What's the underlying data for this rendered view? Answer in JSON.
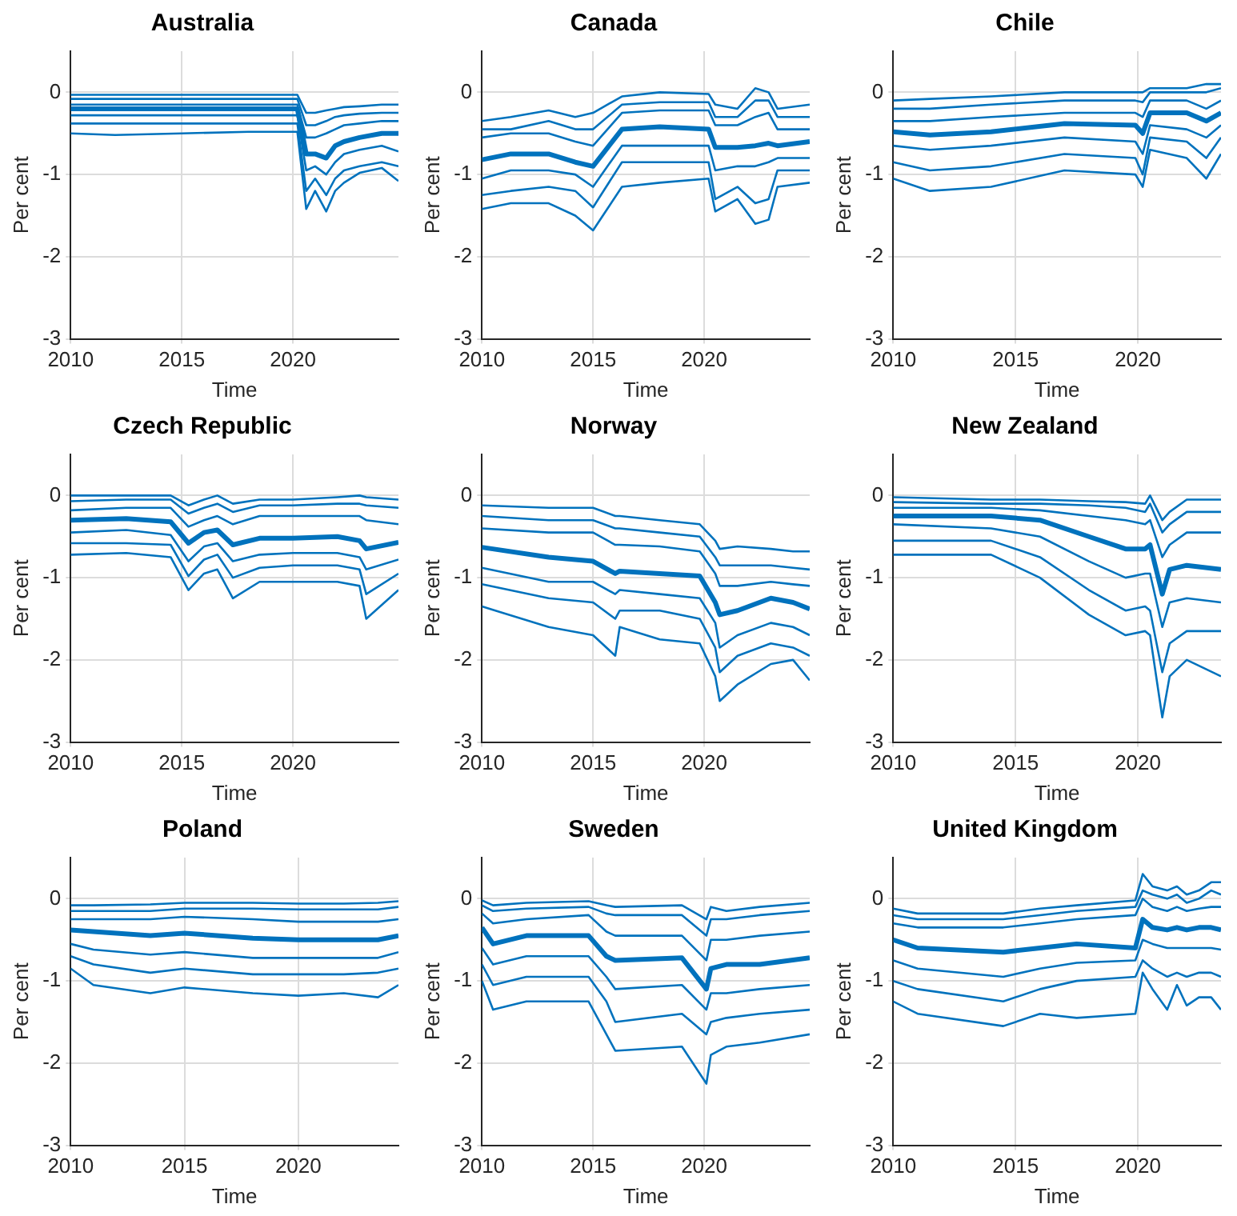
{
  "chart_data": [
    {
      "type": "line",
      "title": "Australia",
      "xlabel": "Time",
      "ylabel": "Per cent",
      "xlim": [
        2010,
        2024.75
      ],
      "xticks": [
        2010,
        2015,
        2020
      ],
      "ylim": [
        -3,
        0.5
      ],
      "yticks": [
        -3,
        -2,
        -1,
        0
      ],
      "grid": true,
      "legend": false,
      "x": [
        2010,
        2012,
        2015,
        2018,
        2020.2,
        2020.6,
        2021.0,
        2021.5,
        2021.9,
        2022.3,
        2023,
        2024,
        2024.75
      ],
      "series": [
        {
          "color": "#0072bd",
          "values": [
            -0.03,
            -0.03,
            -0.03,
            -0.03,
            -0.03,
            -0.25,
            -0.25,
            -0.22,
            -0.2,
            -0.18,
            -0.17,
            -0.15,
            -0.15
          ]
        },
        {
          "color": "#0072bd",
          "values": [
            -0.08,
            -0.08,
            -0.08,
            -0.08,
            -0.08,
            -0.4,
            -0.4,
            -0.35,
            -0.3,
            -0.28,
            -0.26,
            -0.25,
            -0.25
          ]
        },
        {
          "color": "#0072bd",
          "values": [
            -0.15,
            -0.15,
            -0.15,
            -0.15,
            -0.15,
            -0.55,
            -0.55,
            -0.5,
            -0.45,
            -0.4,
            -0.38,
            -0.35,
            -0.35
          ]
        },
        {
          "color": "#0072bd",
          "values": [
            -0.2,
            -0.2,
            -0.2,
            -0.2,
            -0.2,
            -0.75,
            -0.75,
            -0.8,
            -0.65,
            -0.6,
            -0.55,
            -0.5,
            -0.5
          ]
        },
        {
          "color": "#0072bd",
          "values": [
            -0.28,
            -0.28,
            -0.28,
            -0.28,
            -0.28,
            -0.95,
            -0.9,
            -1.0,
            -0.85,
            -0.75,
            -0.7,
            -0.65,
            -0.72
          ]
        },
        {
          "color": "#0072bd",
          "values": [
            -0.38,
            -0.38,
            -0.38,
            -0.38,
            -0.38,
            -1.2,
            -1.05,
            -1.25,
            -1.05,
            -0.95,
            -0.9,
            -0.85,
            -0.9
          ]
        },
        {
          "color": "#0072bd",
          "values": [
            -0.5,
            -0.52,
            -0.5,
            -0.48,
            -0.48,
            -1.42,
            -1.2,
            -1.45,
            -1.2,
            -1.1,
            -0.98,
            -0.92,
            -1.08
          ]
        }
      ]
    },
    {
      "type": "line",
      "title": "Canada",
      "xlabel": "Time",
      "ylabel": "Per cent",
      "xlim": [
        2010,
        2024.75
      ],
      "xticks": [
        2010,
        2015,
        2020
      ],
      "ylim": [
        -3,
        0.5
      ],
      "yticks": [
        -3,
        -2,
        -1,
        0
      ],
      "grid": true,
      "legend": false,
      "x": [
        2010,
        2011.3,
        2013,
        2014.2,
        2015,
        2016.3,
        2018,
        2020.2,
        2020.5,
        2021.5,
        2022.3,
        2022.9,
        2023.3,
        2024.75
      ],
      "series": [
        {
          "color": "#0072bd",
          "values": [
            -0.35,
            -0.3,
            -0.22,
            -0.3,
            -0.25,
            -0.05,
            0,
            -0.02,
            -0.15,
            -0.2,
            0.05,
            0.0,
            -0.2,
            -0.15
          ]
        },
        {
          "color": "#0072bd",
          "values": [
            -0.45,
            -0.45,
            -0.35,
            -0.45,
            -0.45,
            -0.15,
            -0.12,
            -0.12,
            -0.3,
            -0.3,
            -0.1,
            -0.1,
            -0.3,
            -0.3
          ]
        },
        {
          "color": "#0072bd",
          "values": [
            -0.55,
            -0.5,
            -0.5,
            -0.6,
            -0.65,
            -0.25,
            -0.22,
            -0.22,
            -0.4,
            -0.4,
            -0.3,
            -0.25,
            -0.45,
            -0.45
          ]
        },
        {
          "color": "#0072bd",
          "values": [
            -0.82,
            -0.75,
            -0.75,
            -0.85,
            -0.9,
            -0.45,
            -0.42,
            -0.45,
            -0.67,
            -0.67,
            -0.65,
            -0.62,
            -0.65,
            -0.6
          ]
        },
        {
          "color": "#0072bd",
          "values": [
            -1.05,
            -0.95,
            -0.95,
            -1.0,
            -1.15,
            -0.65,
            -0.65,
            -0.65,
            -0.95,
            -0.9,
            -0.9,
            -0.85,
            -0.8,
            -0.8
          ]
        },
        {
          "color": "#0072bd",
          "values": [
            -1.25,
            -1.2,
            -1.15,
            -1.2,
            -1.4,
            -0.85,
            -0.85,
            -0.85,
            -1.3,
            -1.15,
            -1.35,
            -1.3,
            -0.95,
            -0.95
          ]
        },
        {
          "color": "#0072bd",
          "values": [
            -1.42,
            -1.35,
            -1.35,
            -1.5,
            -1.68,
            -1.15,
            -1.1,
            -1.05,
            -1.45,
            -1.3,
            -1.6,
            -1.55,
            -1.15,
            -1.1
          ]
        }
      ]
    },
    {
      "type": "line",
      "title": "Chile",
      "xlabel": "Time",
      "ylabel": "Per cent",
      "xlim": [
        2010,
        2023.4
      ],
      "xticks": [
        2010,
        2015,
        2020
      ],
      "ylim": [
        -3,
        0.5
      ],
      "yticks": [
        -3,
        -2,
        -1,
        0
      ],
      "grid": true,
      "legend": false,
      "x": [
        2010,
        2011.5,
        2014,
        2017,
        2019.9,
        2020.2,
        2020.5,
        2022,
        2022.8,
        2023.4
      ],
      "series": [
        {
          "color": "#0072bd",
          "values": [
            -0.1,
            -0.08,
            -0.05,
            0.0,
            0.0,
            0.0,
            0.05,
            0.05,
            0.1,
            0.1
          ]
        },
        {
          "color": "#0072bd",
          "values": [
            -0.2,
            -0.2,
            -0.15,
            -0.1,
            -0.1,
            -0.12,
            0.0,
            0.0,
            0.0,
            0.05
          ]
        },
        {
          "color": "#0072bd",
          "values": [
            -0.35,
            -0.35,
            -0.3,
            -0.25,
            -0.25,
            -0.3,
            -0.1,
            -0.1,
            -0.2,
            -0.1
          ]
        },
        {
          "color": "#0072bd",
          "values": [
            -0.48,
            -0.52,
            -0.48,
            -0.38,
            -0.4,
            -0.5,
            -0.25,
            -0.25,
            -0.35,
            -0.25
          ]
        },
        {
          "color": "#0072bd",
          "values": [
            -0.65,
            -0.7,
            -0.65,
            -0.55,
            -0.6,
            -0.75,
            -0.4,
            -0.45,
            -0.55,
            -0.4
          ]
        },
        {
          "color": "#0072bd",
          "values": [
            -0.85,
            -0.95,
            -0.9,
            -0.75,
            -0.8,
            -1.0,
            -0.55,
            -0.6,
            -0.8,
            -0.55
          ]
        },
        {
          "color": "#0072bd",
          "values": [
            -1.05,
            -1.2,
            -1.15,
            -0.95,
            -1.0,
            -1.15,
            -0.7,
            -0.8,
            -1.05,
            -0.75
          ]
        }
      ]
    },
    {
      "type": "line",
      "title": "Czech Republic",
      "xlabel": "Time",
      "ylabel": "Per cent",
      "xlim": [
        2010,
        2024.75
      ],
      "xticks": [
        2010,
        2015,
        2020
      ],
      "ylim": [
        -3,
        0.5
      ],
      "yticks": [
        -3,
        -2,
        -1,
        0
      ],
      "grid": true,
      "legend": false,
      "x": [
        2010,
        2012.5,
        2014.5,
        2015.3,
        2016,
        2016.6,
        2017.3,
        2018.5,
        2020,
        2022,
        2023,
        2023.3,
        2024.75
      ],
      "series": [
        {
          "color": "#0072bd",
          "values": [
            0,
            0,
            0,
            -0.12,
            -0.05,
            0,
            -0.1,
            -0.05,
            -0.05,
            -0.02,
            0,
            -0.02,
            -0.05
          ]
        },
        {
          "color": "#0072bd",
          "values": [
            -0.07,
            -0.05,
            -0.05,
            -0.22,
            -0.15,
            -0.1,
            -0.2,
            -0.12,
            -0.12,
            -0.1,
            -0.1,
            -0.12,
            -0.15
          ]
        },
        {
          "color": "#0072bd",
          "values": [
            -0.18,
            -0.15,
            -0.15,
            -0.38,
            -0.3,
            -0.25,
            -0.35,
            -0.25,
            -0.25,
            -0.25,
            -0.25,
            -0.3,
            -0.35
          ]
        },
        {
          "color": "#0072bd",
          "values": [
            -0.3,
            -0.28,
            -0.32,
            -0.58,
            -0.45,
            -0.42,
            -0.6,
            -0.52,
            -0.52,
            -0.5,
            -0.55,
            -0.65,
            -0.57
          ]
        },
        {
          "color": "#0072bd",
          "values": [
            -0.45,
            -0.42,
            -0.48,
            -0.8,
            -0.62,
            -0.58,
            -0.8,
            -0.72,
            -0.7,
            -0.7,
            -0.75,
            -0.9,
            -0.78
          ]
        },
        {
          "color": "#0072bd",
          "values": [
            -0.58,
            -0.58,
            -0.6,
            -0.98,
            -0.78,
            -0.72,
            -1.0,
            -0.88,
            -0.85,
            -0.85,
            -0.9,
            -1.2,
            -0.95
          ]
        },
        {
          "color": "#0072bd",
          "values": [
            -0.72,
            -0.7,
            -0.75,
            -1.15,
            -0.95,
            -0.9,
            -1.25,
            -1.05,
            -1.05,
            -1.05,
            -1.1,
            -1.5,
            -1.15
          ]
        }
      ]
    },
    {
      "type": "line",
      "title": "Norway",
      "xlabel": "Time",
      "ylabel": "Per cent",
      "xlim": [
        2010,
        2024.75
      ],
      "xticks": [
        2010,
        2015,
        2020
      ],
      "ylim": [
        -3,
        0.5
      ],
      "yticks": [
        -3,
        -2,
        -1,
        0
      ],
      "grid": true,
      "legend": false,
      "x": [
        2010,
        2013,
        2015,
        2016,
        2016.2,
        2018,
        2019.8,
        2020.5,
        2020.7,
        2021.5,
        2023,
        2024,
        2024.75
      ],
      "series": [
        {
          "color": "#0072bd",
          "values": [
            -0.12,
            -0.15,
            -0.15,
            -0.25,
            -0.25,
            -0.3,
            -0.35,
            -0.55,
            -0.65,
            -0.62,
            -0.65,
            -0.68,
            -0.68
          ]
        },
        {
          "color": "#0072bd",
          "values": [
            -0.25,
            -0.3,
            -0.3,
            -0.4,
            -0.4,
            -0.45,
            -0.5,
            -0.75,
            -0.85,
            -0.85,
            -0.85,
            -0.88,
            -0.9
          ]
        },
        {
          "color": "#0072bd",
          "values": [
            -0.4,
            -0.45,
            -0.45,
            -0.6,
            -0.6,
            -0.62,
            -0.68,
            -0.95,
            -1.1,
            -1.1,
            -1.05,
            -1.08,
            -1.1
          ]
        },
        {
          "color": "#0072bd",
          "values": [
            -0.63,
            -0.75,
            -0.8,
            -0.95,
            -0.92,
            -0.95,
            -0.98,
            -1.3,
            -1.45,
            -1.4,
            -1.25,
            -1.3,
            -1.38
          ]
        },
        {
          "color": "#0072bd",
          "values": [
            -0.88,
            -1.05,
            -1.05,
            -1.2,
            -1.15,
            -1.2,
            -1.25,
            -1.55,
            -1.85,
            -1.7,
            -1.55,
            -1.6,
            -1.7
          ]
        },
        {
          "color": "#0072bd",
          "values": [
            -1.08,
            -1.25,
            -1.3,
            -1.5,
            -1.4,
            -1.4,
            -1.5,
            -1.85,
            -2.15,
            -1.95,
            -1.8,
            -1.85,
            -1.95
          ]
        },
        {
          "color": "#0072bd",
          "values": [
            -1.35,
            -1.6,
            -1.7,
            -1.95,
            -1.6,
            -1.75,
            -1.8,
            -2.2,
            -2.5,
            -2.3,
            -2.05,
            -2.0,
            -2.25
          ]
        }
      ]
    },
    {
      "type": "line",
      "title": "New Zealand",
      "xlabel": "Time",
      "ylabel": "Per cent",
      "xlim": [
        2010,
        2023.4
      ],
      "xticks": [
        2010,
        2015,
        2020
      ],
      "ylim": [
        -3,
        0.5
      ],
      "yticks": [
        -3,
        -2,
        -1,
        0
      ],
      "grid": true,
      "legend": false,
      "x": [
        2010,
        2014,
        2016,
        2018,
        2019.5,
        2020.3,
        2020.5,
        2021,
        2021.3,
        2022,
        2023.4
      ],
      "series": [
        {
          "color": "#0072bd",
          "values": [
            -0.02,
            -0.05,
            -0.05,
            -0.07,
            -0.08,
            -0.1,
            0.0,
            -0.3,
            -0.2,
            -0.05,
            -0.05
          ]
        },
        {
          "color": "#0072bd",
          "values": [
            -0.08,
            -0.1,
            -0.1,
            -0.12,
            -0.15,
            -0.2,
            -0.1,
            -0.45,
            -0.35,
            -0.2,
            -0.2
          ]
        },
        {
          "color": "#0072bd",
          "values": [
            -0.15,
            -0.15,
            -0.18,
            -0.25,
            -0.3,
            -0.35,
            -0.3,
            -0.75,
            -0.6,
            -0.45,
            -0.45
          ]
        },
        {
          "color": "#0072bd",
          "values": [
            -0.25,
            -0.25,
            -0.3,
            -0.5,
            -0.65,
            -0.65,
            -0.6,
            -1.2,
            -0.9,
            -0.85,
            -0.9
          ]
        },
        {
          "color": "#0072bd",
          "values": [
            -0.35,
            -0.4,
            -0.5,
            -0.8,
            -1.0,
            -0.95,
            -0.95,
            -1.6,
            -1.3,
            -1.25,
            -1.3
          ]
        },
        {
          "color": "#0072bd",
          "values": [
            -0.55,
            -0.55,
            -0.75,
            -1.15,
            -1.4,
            -1.35,
            -1.4,
            -2.15,
            -1.8,
            -1.65,
            -1.65
          ]
        },
        {
          "color": "#0072bd",
          "values": [
            -0.72,
            -0.72,
            -1.0,
            -1.45,
            -1.7,
            -1.65,
            -1.7,
            -2.7,
            -2.2,
            -2.0,
            -2.2
          ]
        }
      ]
    },
    {
      "type": "line",
      "title": "Poland",
      "xlabel": "Time",
      "ylabel": "Per cent",
      "xlim": [
        2010,
        2024.4
      ],
      "xticks": [
        2010,
        2015,
        2020
      ],
      "ylim": [
        -3,
        0.5
      ],
      "yticks": [
        -3,
        -2,
        -1,
        0
      ],
      "grid": true,
      "legend": false,
      "x": [
        2010,
        2011,
        2013.5,
        2015,
        2018,
        2020,
        2022,
        2023.5,
        2024.4
      ],
      "series": [
        {
          "color": "#0072bd",
          "values": [
            -0.08,
            -0.08,
            -0.07,
            -0.05,
            -0.05,
            -0.06,
            -0.06,
            -0.05,
            -0.03
          ]
        },
        {
          "color": "#0072bd",
          "values": [
            -0.15,
            -0.15,
            -0.15,
            -0.12,
            -0.12,
            -0.13,
            -0.13,
            -0.13,
            -0.1
          ]
        },
        {
          "color": "#0072bd",
          "values": [
            -0.25,
            -0.25,
            -0.25,
            -0.22,
            -0.25,
            -0.28,
            -0.28,
            -0.28,
            -0.25
          ]
        },
        {
          "color": "#0072bd",
          "values": [
            -0.38,
            -0.4,
            -0.45,
            -0.42,
            -0.48,
            -0.5,
            -0.5,
            -0.5,
            -0.45
          ]
        },
        {
          "color": "#0072bd",
          "values": [
            -0.55,
            -0.62,
            -0.68,
            -0.65,
            -0.72,
            -0.72,
            -0.72,
            -0.72,
            -0.65
          ]
        },
        {
          "color": "#0072bd",
          "values": [
            -0.7,
            -0.8,
            -0.9,
            -0.85,
            -0.92,
            -0.92,
            -0.92,
            -0.9,
            -0.85
          ]
        },
        {
          "color": "#0072bd",
          "values": [
            -0.85,
            -1.05,
            -1.15,
            -1.08,
            -1.15,
            -1.18,
            -1.15,
            -1.2,
            -1.05
          ]
        }
      ]
    },
    {
      "type": "line",
      "title": "Sweden",
      "xlabel": "Time",
      "ylabel": "Per cent",
      "xlim": [
        2010,
        2024.75
      ],
      "xticks": [
        2010,
        2015,
        2020
      ],
      "ylim": [
        -3,
        0.5
      ],
      "yticks": [
        -3,
        -2,
        -1,
        0
      ],
      "grid": true,
      "legend": false,
      "x": [
        2010,
        2010.5,
        2012,
        2014.8,
        2015.6,
        2016,
        2019,
        2020.1,
        2020.3,
        2021,
        2022.5,
        2024.75
      ],
      "series": [
        {
          "color": "#0072bd",
          "values": [
            -0.02,
            -0.08,
            -0.05,
            -0.03,
            -0.08,
            -0.1,
            -0.08,
            -0.25,
            -0.1,
            -0.15,
            -0.1,
            -0.05
          ]
        },
        {
          "color": "#0072bd",
          "values": [
            -0.08,
            -0.15,
            -0.12,
            -0.1,
            -0.18,
            -0.2,
            -0.2,
            -0.45,
            -0.25,
            -0.25,
            -0.2,
            -0.15
          ]
        },
        {
          "color": "#0072bd",
          "values": [
            -0.18,
            -0.3,
            -0.25,
            -0.2,
            -0.4,
            -0.45,
            -0.45,
            -0.75,
            -0.5,
            -0.5,
            -0.45,
            -0.4
          ]
        },
        {
          "color": "#0072bd",
          "values": [
            -0.35,
            -0.55,
            -0.45,
            -0.45,
            -0.7,
            -0.75,
            -0.72,
            -1.1,
            -0.85,
            -0.8,
            -0.8,
            -0.72
          ]
        },
        {
          "color": "#0072bd",
          "values": [
            -0.6,
            -0.8,
            -0.7,
            -0.7,
            -0.95,
            -1.1,
            -1.05,
            -1.35,
            -1.15,
            -1.15,
            -1.1,
            -1.05
          ]
        },
        {
          "color": "#0072bd",
          "values": [
            -0.8,
            -1.05,
            -0.95,
            -0.95,
            -1.25,
            -1.5,
            -1.4,
            -1.65,
            -1.5,
            -1.45,
            -1.4,
            -1.35
          ]
        },
        {
          "color": "#0072bd",
          "values": [
            -1.0,
            -1.35,
            -1.25,
            -1.25,
            -1.65,
            -1.85,
            -1.8,
            -2.25,
            -1.9,
            -1.8,
            -1.75,
            -1.65
          ]
        }
      ]
    },
    {
      "type": "line",
      "title": "United Kingdom",
      "xlabel": "Time",
      "ylabel": "Per cent",
      "xlim": [
        2010,
        2023.4
      ],
      "xticks": [
        2010,
        2015,
        2020
      ],
      "ylim": [
        -3,
        0.5
      ],
      "yticks": [
        -3,
        -2,
        -1,
        0
      ],
      "grid": true,
      "legend": false,
      "x": [
        2010,
        2011,
        2014.5,
        2016,
        2017.5,
        2019.9,
        2020.2,
        2020.6,
        2021.2,
        2021.6,
        2022,
        2022.5,
        2023,
        2023.4
      ],
      "series": [
        {
          "color": "#0072bd",
          "values": [
            -0.12,
            -0.18,
            -0.18,
            -0.12,
            -0.08,
            -0.02,
            0.3,
            0.15,
            0.1,
            0.15,
            0.05,
            0.1,
            0.2,
            0.2
          ]
        },
        {
          "color": "#0072bd",
          "values": [
            -0.2,
            -0.25,
            -0.25,
            -0.2,
            -0.15,
            -0.1,
            0.1,
            0.05,
            0.0,
            0.05,
            -0.05,
            0.0,
            0.1,
            0.05
          ]
        },
        {
          "color": "#0072bd",
          "values": [
            -0.3,
            -0.35,
            -0.35,
            -0.3,
            -0.25,
            -0.2,
            0.0,
            -0.1,
            -0.15,
            -0.1,
            -0.15,
            -0.12,
            -0.1,
            -0.1
          ]
        },
        {
          "color": "#0072bd",
          "values": [
            -0.5,
            -0.6,
            -0.65,
            -0.6,
            -0.55,
            -0.6,
            -0.25,
            -0.35,
            -0.38,
            -0.35,
            -0.38,
            -0.35,
            -0.35,
            -0.38
          ]
        },
        {
          "color": "#0072bd",
          "values": [
            -0.75,
            -0.85,
            -0.95,
            -0.85,
            -0.78,
            -0.75,
            -0.5,
            -0.55,
            -0.6,
            -0.6,
            -0.6,
            -0.6,
            -0.6,
            -0.62
          ]
        },
        {
          "color": "#0072bd",
          "values": [
            -1.0,
            -1.1,
            -1.25,
            -1.1,
            -1.0,
            -0.95,
            -0.75,
            -0.85,
            -0.95,
            -0.9,
            -0.95,
            -0.9,
            -0.9,
            -0.95
          ]
        },
        {
          "color": "#0072bd",
          "values": [
            -1.25,
            -1.4,
            -1.55,
            -1.4,
            -1.45,
            -1.4,
            -0.9,
            -1.1,
            -1.35,
            -1.05,
            -1.3,
            -1.2,
            -1.2,
            -1.35
          ]
        }
      ]
    }
  ]
}
